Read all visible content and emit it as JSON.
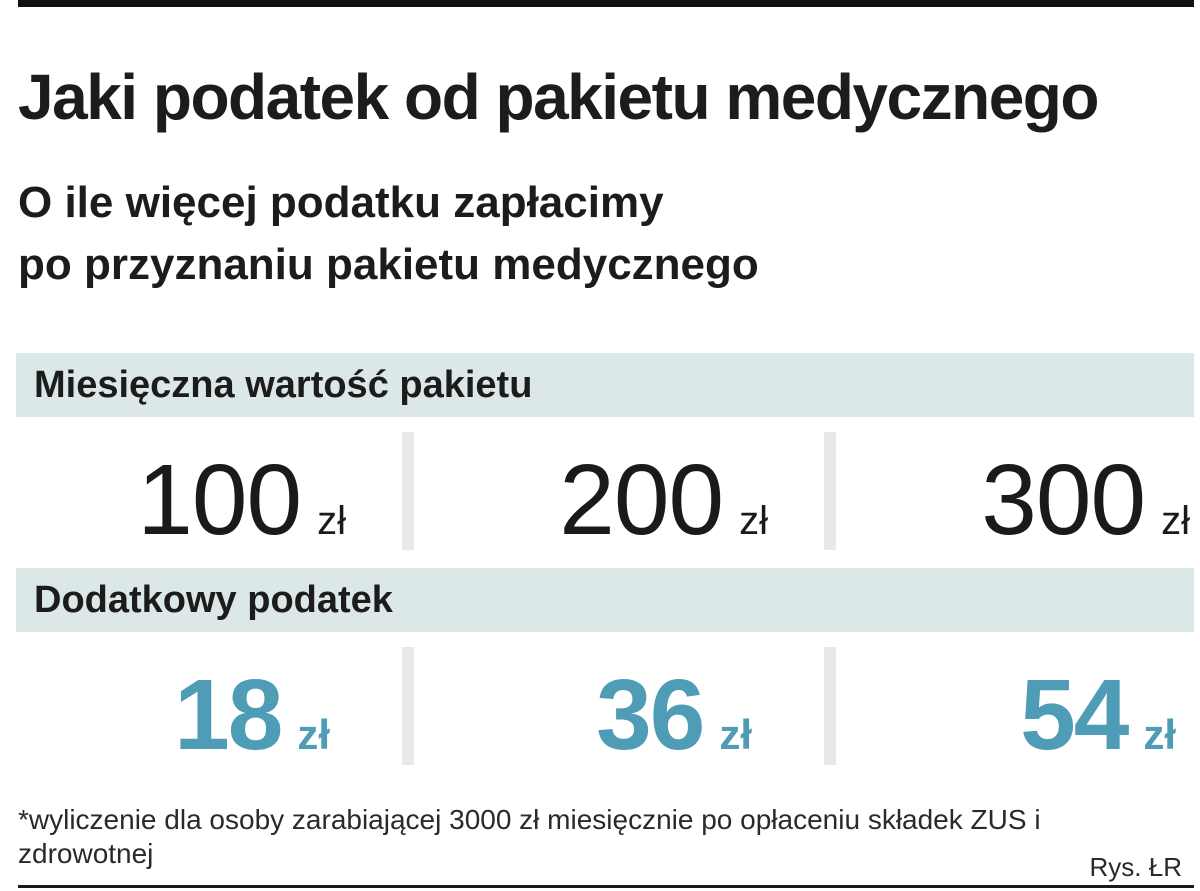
{
  "title": "Jaki podatek od pakietu medycznego",
  "subtitle_line1": "O ile więcej podatku zapłacimy",
  "subtitle_line2": "po przyznaniu pakietu medycznego",
  "package_section": {
    "label": "Miesięczna wartość pakietu",
    "values": [
      {
        "amount": "100",
        "unit": "zł"
      },
      {
        "amount": "200",
        "unit": "zł"
      },
      {
        "amount": "300",
        "unit": "zł"
      }
    ]
  },
  "tax_section": {
    "label": "Dodatkowy podatek",
    "values": [
      {
        "amount": "18",
        "unit": "zł"
      },
      {
        "amount": "36",
        "unit": "zł"
      },
      {
        "amount": "54",
        "unit": "zł"
      }
    ]
  },
  "footnote": "*wyliczenie dla osoby zarabiającej 3000 zł miesięcznie po opłaceniu składek ZUS i zdrowotnej",
  "credit": "Rys. ŁR",
  "colors": {
    "accent": "#4e9cb6",
    "band": "#dce8e8",
    "text": "#1a1a1a"
  }
}
